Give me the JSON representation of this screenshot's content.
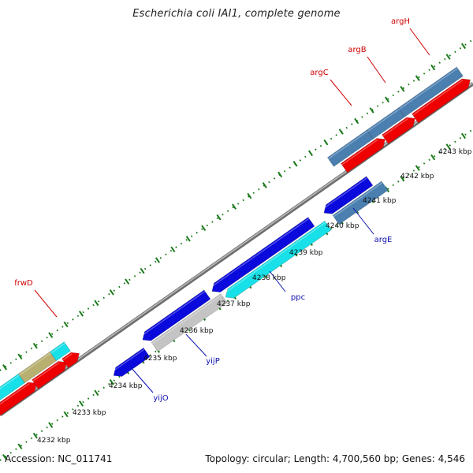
{
  "title": "Escherichia coli IAI1, complete genome",
  "footer": {
    "accession": "Accession: NC_011741",
    "topology": "Topology: circular; Length: 4,700,560 bp; Genes: 4,546"
  },
  "colors": {
    "backbone": "#8a8a8a",
    "tick": "#1a7a1a",
    "label_red": "#d00000",
    "label_blue": "#1010b0",
    "gene_steelblue": "#4a7fb0",
    "gene_red": "#ee0000",
    "gene_blue": "#0a0adc",
    "gene_cyan": "#18e0e8",
    "gene_grey": "#c4c4c4",
    "gene_olive": "#b8b070"
  },
  "scale_labels": [
    "4232 kbp",
    "4233 kbp",
    "4234 kbp",
    "4235 kbp",
    "4236 kbp",
    "4237 kbp",
    "4238 kbp",
    "4239 kbp",
    "4240 kbp",
    "4241 kbp",
    "4242 kbp",
    "4243 kbp"
  ],
  "gene_labels": [
    {
      "name": "argH",
      "color": "red"
    },
    {
      "name": "argB",
      "color": "red"
    },
    {
      "name": "argC",
      "color": "red"
    },
    {
      "name": "frwD",
      "color": "red"
    },
    {
      "name": "argE",
      "color": "blue"
    },
    {
      "name": "ppc",
      "color": "blue"
    },
    {
      "name": "yijP",
      "color": "blue"
    },
    {
      "name": "yijO",
      "color": "blue"
    }
  ]
}
